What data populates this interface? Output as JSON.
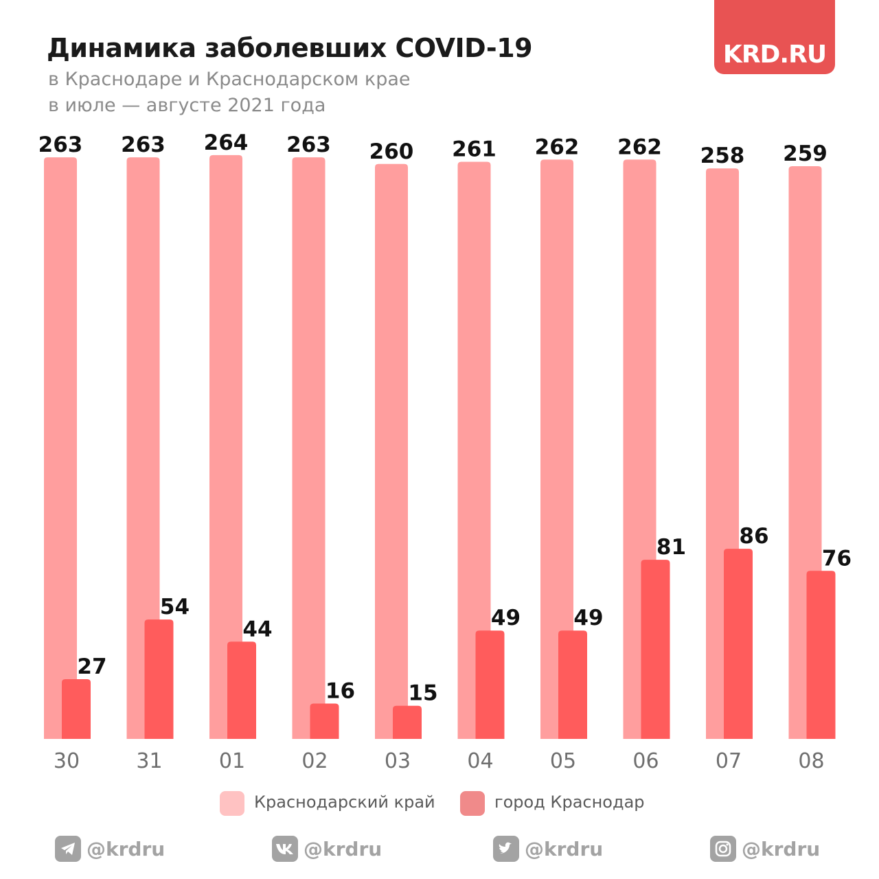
{
  "header": {
    "title": "Динамика заболевших COVID-19",
    "subtitle_line1": "в Краснодаре и Краснодарском крае",
    "subtitle_line2": "в июле — августе 2021 года",
    "logo_text": "KRD.RU"
  },
  "chart_data": {
    "type": "bar",
    "title": "Динамика заболевших COVID-19",
    "categories": [
      "30",
      "31",
      "01",
      "02",
      "03",
      "04",
      "05",
      "06",
      "07",
      "08"
    ],
    "series": [
      {
        "name": "Краснодарский край",
        "values": [
          263,
          263,
          264,
          263,
          260,
          261,
          262,
          262,
          258,
          259
        ],
        "color": "#ff9e9e"
      },
      {
        "name": "город Краснодар",
        "values": [
          27,
          54,
          44,
          16,
          15,
          49,
          49,
          81,
          86,
          76
        ],
        "color": "#ff5c5c"
      }
    ],
    "ylim": [
      0,
      264
    ],
    "grid": false,
    "legend_position": "bottom",
    "data_labels": true
  },
  "legend": {
    "items": [
      {
        "label": "Краснодарский край",
        "color": "#ffc2c2"
      },
      {
        "label": "город Краснодар",
        "color": "#f08a8a"
      }
    ]
  },
  "footer": {
    "socials": [
      {
        "icon": "telegram-icon",
        "handle": "@krdru"
      },
      {
        "icon": "vk-icon",
        "handle": "@krdru"
      },
      {
        "icon": "twitter-icon",
        "handle": "@krdru"
      },
      {
        "icon": "instagram-icon",
        "handle": "@krdru"
      }
    ]
  },
  "colors": {
    "accent": "#e85353",
    "region_bar": "#ff9e9e",
    "city_bar": "#ff5c5c",
    "social_gray": "#a3a3a3"
  }
}
